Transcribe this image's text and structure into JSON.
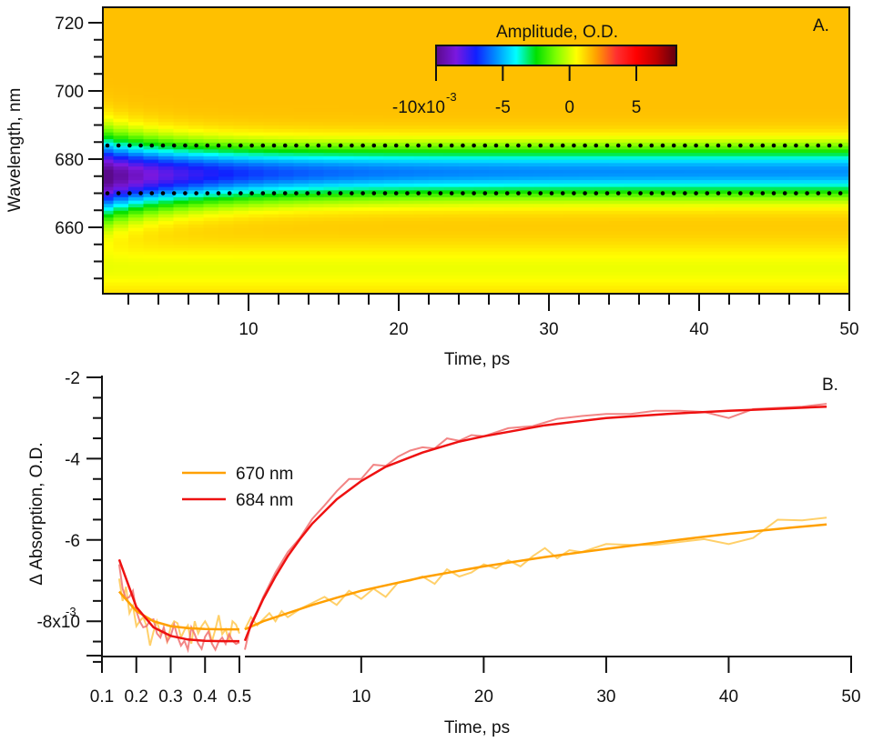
{
  "chart_data": [
    {
      "id": "A",
      "type": "heatmap",
      "panel_label": "A.",
      "title": "",
      "xlabel": "Time, ps",
      "ylabel": "Wavelength, nm",
      "xlim": [
        0,
        50
      ],
      "ylim": [
        639,
        725
      ],
      "x_ticks": [
        10,
        20,
        30,
        40,
        50
      ],
      "x_tick_labels": [
        "10",
        "20",
        "30",
        "40",
        "50"
      ],
      "x_minor_step": 2,
      "y_ticks": [
        660,
        680,
        700,
        720
      ],
      "y_tick_labels": [
        "660",
        "680",
        "700",
        "720"
      ],
      "y_minor_step": 5,
      "colorbar": {
        "title": "Amplitude, O.D.",
        "range": [
          -0.01,
          0.008
        ],
        "ticks": [
          -0.01,
          -0.005,
          0,
          0.005
        ],
        "tick_labels": [
          "-10x10",
          "-5",
          "0",
          "5"
        ],
        "exponent_label": "-3",
        "colormap": [
          "#5a0a8a",
          "#7a18e0",
          "#1020ff",
          "#0090ff",
          "#00ffff",
          "#00e000",
          "#80ff00",
          "#ffff00",
          "#ffa000",
          "#ff3030",
          "#ff0000",
          "#c00000",
          "#600010"
        ]
      },
      "bleach_band": {
        "description": "negative amplitude band centered near 676 nm that narrows and recovers with time",
        "center_nm": 676,
        "min_amplitude_early": -0.0105,
        "min_amplitude_late": -0.0055,
        "background_amplitude": 0.0015
      },
      "markers": [
        {
          "name": "684 nm",
          "wavelength": 684,
          "style": "dotted",
          "color": "#000000"
        },
        {
          "name": "670 nm",
          "wavelength": 670,
          "style": "dotted",
          "color": "#000000"
        }
      ]
    },
    {
      "id": "B",
      "type": "line",
      "panel_label": "B.",
      "title": "",
      "xlabel": "Time, ps",
      "ylabel": "Δ Absorption, O.D.",
      "ylim": [
        -0.0092,
        -0.002
      ],
      "y_ticks": [
        -0.008,
        -0.006,
        -0.004,
        -0.002
      ],
      "y_tick_labels": [
        "-8x10",
        "-6",
        "-4",
        "-2"
      ],
      "y_exponent_label": "-3",
      "y_minor_step": 0.0005,
      "x_axis_segments": [
        {
          "range": [
            0.1,
            0.5
          ],
          "ticks": [
            0.1,
            0.2,
            0.3,
            0.4,
            0.5
          ],
          "tick_labels": [
            "0.1",
            "0.2",
            "0.3",
            "0.4",
            "0.5"
          ]
        },
        {
          "range": [
            0.5,
            50
          ],
          "ticks": [
            10,
            20,
            30,
            40,
            50
          ],
          "tick_labels": [
            "10",
            "20",
            "30",
            "40",
            "50"
          ]
        }
      ],
      "legend": {
        "placement": "center-left",
        "entries": [
          {
            "label": "670 nm",
            "color": "#ffa000"
          },
          {
            "label": "684 nm",
            "color": "#ee1111"
          }
        ]
      },
      "series": [
        {
          "name": "670 nm",
          "color": "#ffa000",
          "raw_color": "#ffc850",
          "early_fit": {
            "x": [
              0.15,
              0.2,
              0.25,
              0.3,
              0.35,
              0.4,
              0.45,
              0.5
            ],
            "y": [
              -0.00727,
              -0.00775,
              -0.008,
              -0.00812,
              -0.00817,
              -0.00819,
              -0.0082,
              -0.0082
            ]
          },
          "early_raw": {
            "x": [
              0.15,
              0.16,
              0.17,
              0.18,
              0.19,
              0.2,
              0.21,
              0.22,
              0.23,
              0.24,
              0.25,
              0.26,
              0.27,
              0.28,
              0.29,
              0.3,
              0.31,
              0.32,
              0.33,
              0.34,
              0.35,
              0.36,
              0.37,
              0.38,
              0.39,
              0.4,
              0.41,
              0.42,
              0.43,
              0.44,
              0.45,
              0.46,
              0.47,
              0.48,
              0.49,
              0.5
            ],
            "y": [
              -0.00695,
              -0.0075,
              -0.00715,
              -0.0078,
              -0.00762,
              -0.00812,
              -0.008,
              -0.0079,
              -0.00812,
              -0.0086,
              -0.00826,
              -0.008,
              -0.0083,
              -0.0082,
              -0.0085,
              -0.00815,
              -0.008,
              -0.00805,
              -0.0084,
              -0.00822,
              -0.0081,
              -0.00855,
              -0.008,
              -0.0083,
              -0.00812,
              -0.008,
              -0.00815,
              -0.0085,
              -0.0082,
              -0.00785,
              -0.00832,
              -0.0082,
              -0.00848,
              -0.008,
              -0.00808,
              -0.0083
            ]
          },
          "late_fit": {
            "x": [
              0.5,
              2,
              4,
              6,
              8,
              10,
              15,
              20,
              25,
              30,
              35,
              40,
              45,
              48
            ],
            "y": [
              -0.0082,
              -0.008,
              -0.0078,
              -0.0076,
              -0.00742,
              -0.00725,
              -0.00692,
              -0.00665,
              -0.00642,
              -0.00622,
              -0.00603,
              -0.00585,
              -0.0057,
              -0.00562
            ]
          },
          "late_raw": {
            "x": [
              0.5,
              1,
              1.5,
              2,
              2.5,
              3,
              3.5,
              4,
              5,
              6,
              7,
              8,
              9,
              10,
              11,
              12,
              13,
              14,
              15,
              16,
              17,
              18,
              19,
              20,
              21,
              22,
              23,
              24,
              25,
              26,
              27,
              28,
              29,
              30,
              32,
              34,
              36,
              38,
              40,
              42,
              44,
              46,
              48
            ],
            "y": [
              -0.0082,
              -0.0079,
              -0.0081,
              -0.00795,
              -0.0078,
              -0.008,
              -0.00775,
              -0.0079,
              -0.0077,
              -0.00755,
              -0.0074,
              -0.0076,
              -0.00725,
              -0.00745,
              -0.0072,
              -0.0074,
              -0.00705,
              -0.007,
              -0.0069,
              -0.00708,
              -0.00672,
              -0.0069,
              -0.0068,
              -0.0066,
              -0.0067,
              -0.0065,
              -0.00665,
              -0.0064,
              -0.0062,
              -0.00645,
              -0.00625,
              -0.0063,
              -0.0062,
              -0.0061,
              -0.00612,
              -0.00612,
              -0.00605,
              -0.00598,
              -0.0061,
              -0.00595,
              -0.0055,
              -0.00552,
              -0.00545
            ]
          }
        },
        {
          "name": "684 nm",
          "color": "#ee1111",
          "raw_color": "#f07070",
          "early_fit": {
            "x": [
              0.15,
              0.2,
              0.25,
              0.3,
              0.35,
              0.4,
              0.45,
              0.5
            ],
            "y": [
              -0.00648,
              -0.00765,
              -0.00815,
              -0.00836,
              -0.00845,
              -0.00848,
              -0.00849,
              -0.00849
            ]
          },
          "early_raw": {
            "x": [
              0.15,
              0.16,
              0.17,
              0.18,
              0.19,
              0.2,
              0.21,
              0.22,
              0.23,
              0.24,
              0.25,
              0.26,
              0.27,
              0.28,
              0.29,
              0.3,
              0.31,
              0.32,
              0.33,
              0.34,
              0.35,
              0.36,
              0.37,
              0.38,
              0.39,
              0.4,
              0.41,
              0.42,
              0.43,
              0.44,
              0.45,
              0.46,
              0.47,
              0.48,
              0.49,
              0.5
            ],
            "y": [
              -0.0066,
              -0.0072,
              -0.00745,
              -0.0074,
              -0.00725,
              -0.00775,
              -0.008,
              -0.00815,
              -0.00812,
              -0.00798,
              -0.00795,
              -0.0083,
              -0.0084,
              -0.00815,
              -0.0085,
              -0.00836,
              -0.00808,
              -0.00838,
              -0.0086,
              -0.00848,
              -0.0087,
              -0.00815,
              -0.00832,
              -0.00855,
              -0.00868,
              -0.00838,
              -0.00825,
              -0.00855,
              -0.0087,
              -0.0085,
              -0.0084,
              -0.00856,
              -0.00832,
              -0.00848,
              -0.00856,
              -0.00852
            ]
          },
          "late_fit": {
            "x": [
              0.5,
              1,
              2,
              3,
              4,
              5,
              6,
              8,
              10,
              12,
              15,
              18,
              20,
              25,
              30,
              35,
              40,
              45,
              48
            ],
            "y": [
              -0.00848,
              -0.0081,
              -0.00745,
              -0.0069,
              -0.0064,
              -0.00598,
              -0.0056,
              -0.005,
              -0.00455,
              -0.0042,
              -0.00385,
              -0.00358,
              -0.00345,
              -0.00318,
              -0.003,
              -0.0029,
              -0.00282,
              -0.00276,
              -0.00272
            ]
          },
          "late_raw": {
            "x": [
              0.5,
              1,
              1.5,
              2,
              3,
              4,
              5,
              6,
              7,
              8,
              9,
              10,
              11,
              12,
              13,
              14,
              15,
              16,
              17,
              18,
              19,
              20,
              22,
              24,
              26,
              28,
              30,
              32,
              34,
              36,
              38,
              40,
              42,
              44,
              46,
              48
            ],
            "y": [
              -0.0087,
              -0.00805,
              -0.00775,
              -0.0074,
              -0.0068,
              -0.0063,
              -0.00595,
              -0.00548,
              -0.00515,
              -0.0048,
              -0.0045,
              -0.0045,
              -0.00415,
              -0.00418,
              -0.00395,
              -0.0038,
              -0.00372,
              -0.00375,
              -0.0035,
              -0.00356,
              -0.00342,
              -0.00345,
              -0.00325,
              -0.0032,
              -0.00302,
              -0.00295,
              -0.0029,
              -0.0029,
              -0.00282,
              -0.00282,
              -0.00285,
              -0.003,
              -0.00278,
              -0.00275,
              -0.00272,
              -0.00265
            ]
          }
        }
      ]
    }
  ]
}
